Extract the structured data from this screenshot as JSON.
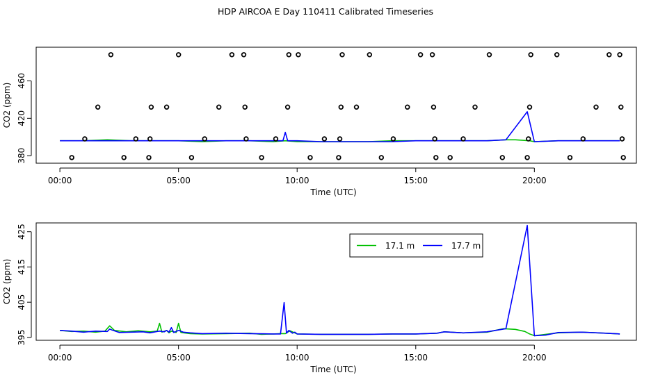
{
  "title": "HDP AIRCOA E  Day 110411  Calibrated Timeseries",
  "chart_data": [
    {
      "type": "line",
      "panel": "top",
      "xlabel": "Time (UTC)",
      "ylabel": "CO2 (ppm)",
      "xlim": [
        -1.0,
        24.3
      ],
      "ylim": [
        372,
        496
      ],
      "x_ticks": [
        0,
        5,
        10,
        15,
        20
      ],
      "x_tick_labels": [
        "00:00",
        "05:00",
        "10:00",
        "15:00",
        "20:00"
      ],
      "y_ticks": [
        380,
        420,
        460
      ],
      "y_tick_labels": [
        "380",
        "420",
        "460"
      ],
      "colors": {
        "series_17_1": "#00c000",
        "series_17_7": "#0000ff",
        "markers": "#000000"
      },
      "series": [
        {
          "color": "#00c000",
          "x": [
            0,
            1,
            2,
            3,
            4,
            5,
            6,
            7,
            8,
            9,
            9.5,
            10,
            11,
            12,
            13,
            14,
            15,
            16,
            17,
            18,
            18.8,
            19.2,
            19.8,
            20,
            21,
            22,
            23,
            23.6
          ],
          "y": [
            396,
            396,
            397,
            396,
            396,
            396,
            395,
            396,
            396,
            395,
            396,
            395,
            395,
            395,
            395,
            396,
            396,
            396,
            396,
            396,
            397,
            397,
            396,
            395,
            396,
            396,
            396,
            396
          ]
        },
        {
          "color": "#0000ff",
          "x": [
            0,
            1,
            2,
            3,
            4,
            5,
            6,
            7,
            8,
            9,
            9.4,
            9.5,
            9.6,
            10,
            11,
            12,
            13,
            14,
            15,
            16,
            17,
            18,
            18.8,
            19.7,
            20,
            21,
            22,
            23,
            23.6
          ],
          "y": [
            396,
            396,
            396,
            396,
            396,
            396,
            396,
            396,
            396,
            396,
            396,
            405,
            396,
            396,
            395,
            395,
            395,
            395,
            396,
            396,
            396,
            396,
            397,
            427,
            395,
            396,
            396,
            396,
            396
          ]
        }
      ],
      "markers": {
        "shape": "open-circle",
        "x": [
          0.5,
          1.05,
          1.6,
          2.15,
          2.7,
          3.2,
          3.75,
          3.8,
          3.85,
          4.5,
          5.0,
          5.55,
          6.1,
          6.7,
          7.25,
          7.75,
          7.8,
          7.85,
          8.5,
          9.1,
          9.6,
          9.65,
          10.05,
          10.55,
          11.15,
          11.75,
          11.8,
          11.85,
          11.9,
          12.5,
          13.05,
          13.55,
          14.05,
          14.65,
          15.2,
          15.7,
          15.75,
          15.8,
          15.85,
          16.45,
          17.0,
          17.5,
          18.1,
          18.65,
          19.7,
          19.75,
          19.8,
          19.85,
          20.95,
          21.5,
          22.05,
          22.6,
          23.15,
          23.6,
          23.65,
          23.7,
          23.75
        ],
        "y": [
          378,
          398,
          432,
          488,
          378,
          398,
          378,
          398,
          432,
          432,
          488,
          378,
          398,
          432,
          488,
          488,
          432,
          398,
          378,
          398,
          432,
          488,
          488,
          378,
          398,
          378,
          398,
          432,
          488,
          432,
          488,
          378,
          398,
          432,
          488,
          488,
          432,
          398,
          378,
          378,
          398,
          432,
          488,
          378,
          378,
          398,
          432,
          488,
          488,
          378,
          398,
          432,
          488,
          488,
          432,
          398,
          378
        ]
      }
    },
    {
      "type": "line",
      "panel": "bottom",
      "xlabel": "Time (UTC)",
      "ylabel": "CO2 (ppm)",
      "xlim": [
        -1.0,
        24.3
      ],
      "ylim": [
        394.2,
        427.5
      ],
      "x_ticks": [
        0,
        5,
        10,
        15,
        20
      ],
      "x_tick_labels": [
        "00:00",
        "05:00",
        "10:00",
        "15:00",
        "20:00"
      ],
      "y_ticks": [
        395,
        405,
        415,
        425
      ],
      "y_tick_labels": [
        "395",
        "405",
        "415",
        "425"
      ],
      "legend": {
        "placement": "top-right",
        "entries": [
          "17.1 m",
          "17.7 m"
        ]
      },
      "series": [
        {
          "name": "17.1 m",
          "color": "#00c000",
          "x": [
            0,
            0.5,
            1,
            1.5,
            1.9,
            2.1,
            2.3,
            2.8,
            3.3,
            3.8,
            4.1,
            4.2,
            4.3,
            4.5,
            4.6,
            4.7,
            4.9,
            5.0,
            5.1,
            5.5,
            6,
            7,
            8,
            8.5,
            9,
            9.3,
            9.5,
            9.7,
            10,
            11,
            12,
            13,
            14,
            15,
            15.9,
            16.2,
            17,
            18,
            18.7,
            19.2,
            19.6,
            19.8,
            20,
            21,
            22,
            23,
            23.6
          ],
          "y": [
            397.0,
            396.7,
            396.8,
            396.5,
            396.8,
            398.3,
            397.0,
            396.6,
            396.9,
            396.6,
            396.8,
            399.0,
            396.5,
            397.0,
            396.3,
            396.8,
            396.4,
            399.0,
            396.4,
            396.1,
            396.0,
            396.1,
            396.2,
            395.9,
            396.0,
            396.1,
            396.1,
            396.9,
            396.0,
            395.9,
            395.9,
            395.9,
            396.0,
            396.0,
            396.2,
            396.6,
            396.3,
            396.5,
            397.5,
            397.3,
            396.7,
            396.0,
            395.5,
            396.3,
            396.5,
            396.2,
            396.0
          ]
        },
        {
          "name": "17.7 m",
          "color": "#0000ff",
          "x": [
            0,
            0.5,
            1,
            1.5,
            2.0,
            2.1,
            2.2,
            2.5,
            3,
            3.5,
            3.8,
            4.1,
            4.2,
            4.4,
            4.5,
            4.6,
            4.7,
            4.8,
            5.0,
            5.2,
            5.5,
            6,
            7,
            8,
            9,
            9.3,
            9.45,
            9.55,
            9.65,
            9.8,
            9.9,
            10,
            11,
            12,
            13,
            14,
            15,
            15.9,
            16.2,
            17,
            18,
            18.8,
            19.7,
            20.0,
            20.5,
            21,
            22,
            23,
            23.6
          ],
          "y": [
            397.0,
            396.8,
            396.5,
            396.8,
            396.7,
            397.4,
            397.1,
            396.4,
            396.5,
            396.6,
            396.3,
            396.7,
            396.8,
            396.6,
            397.0,
            396.5,
            397.8,
            396.4,
            397.0,
            396.5,
            396.3,
            396.1,
            396.2,
            396.1,
            396.0,
            396.0,
            404.9,
            396.2,
            397.0,
            396.2,
            396.5,
            396.0,
            395.9,
            395.9,
            395.9,
            396.0,
            396.0,
            396.2,
            396.6,
            396.3,
            396.6,
            397.5,
            426.8,
            395.5,
            395.7,
            396.4,
            396.5,
            396.2,
            396.0
          ]
        }
      ]
    }
  ]
}
